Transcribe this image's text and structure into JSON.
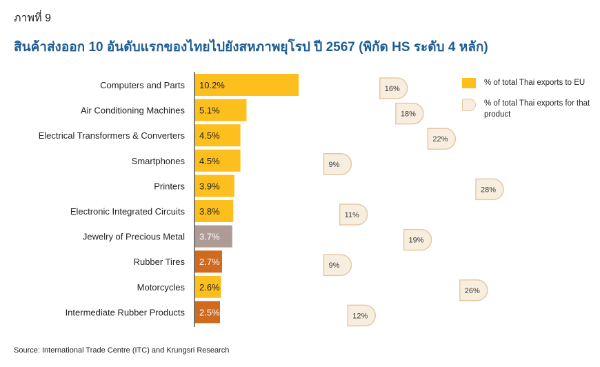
{
  "figure_label": "ภาพที่ 9",
  "title": "สินค้าส่งออก 10 อันดับแรกของไทยไปยังสหภาพยุโรป ปี 2567 (พิกัด HS ระดับ 4 หลัก)",
  "source": "Source: International Trade Centre (ITC) and Krungsri Research",
  "legend": {
    "bar_label": "% of total Thai exports to EU",
    "bubble_label": "% of total Thai exports for that product"
  },
  "colors": {
    "yellow": "#fdbf1e",
    "gray": "#ae9b96",
    "orange": "#cf6a1f",
    "bubble_fill": "#f8eedf",
    "bubble_border": "#e4c9a3",
    "axis": "#555555"
  },
  "chart_data": {
    "type": "bar",
    "orientation": "horizontal",
    "categories": [
      "Computers and Parts",
      "Air Conditioning Machines",
      "Electrical Transformers & Converters",
      "Smartphones",
      "Printers",
      "Electronic Integrated Circuits",
      "Jewelry of Precious Metal",
      "Rubber Tires",
      "Motorcycles",
      "Intermediate Rubber Products"
    ],
    "series": [
      {
        "name": "% of total Thai exports to EU",
        "values": [
          10.2,
          5.1,
          4.5,
          4.5,
          3.9,
          3.8,
          3.7,
          2.7,
          2.6,
          2.5
        ],
        "labels": [
          "10.2%",
          "5.1%",
          "4.5%",
          "4.5%",
          "3.9%",
          "3.8%",
          "3.7%",
          "2.7%",
          "2.6%",
          "2.5%"
        ],
        "bar_colors": [
          "yellow",
          "yellow",
          "yellow",
          "yellow",
          "yellow",
          "yellow",
          "gray",
          "orange",
          "yellow",
          "orange"
        ]
      },
      {
        "name": "% of total Thai exports for that product",
        "values": [
          16,
          18,
          22,
          9,
          28,
          11,
          19,
          9,
          26,
          12
        ],
        "labels": [
          "16%",
          "18%",
          "22%",
          "9%",
          "28%",
          "11%",
          "19%",
          "9%",
          "26%",
          "12%"
        ]
      }
    ],
    "bar_axis_range": [
      0,
      10.2
    ],
    "bubble_axis_range": [
      0,
      28
    ],
    "grid": false,
    "legend_position": "right"
  }
}
